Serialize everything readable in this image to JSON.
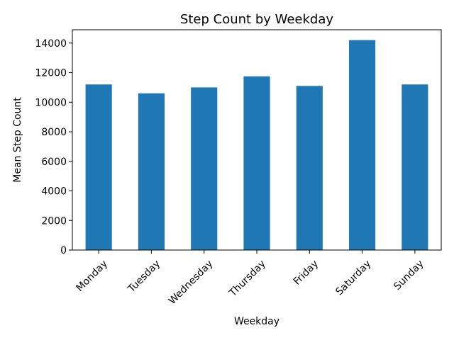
{
  "chart_data": {
    "type": "bar",
    "title": "Step Count by Weekday",
    "xlabel": "Weekday",
    "ylabel": "Mean Step Count",
    "categories": [
      "Monday",
      "Tuesday",
      "Wednesday",
      "Thursday",
      "Friday",
      "Saturday",
      "Sunday"
    ],
    "values": [
      11200,
      10600,
      11000,
      11750,
      11100,
      14200,
      11200
    ],
    "ylim": [
      0,
      14900
    ],
    "yticks": [
      0,
      2000,
      4000,
      6000,
      8000,
      10000,
      12000,
      14000
    ],
    "bar_color": "#1f77b4",
    "grid": false,
    "legend": "none"
  }
}
